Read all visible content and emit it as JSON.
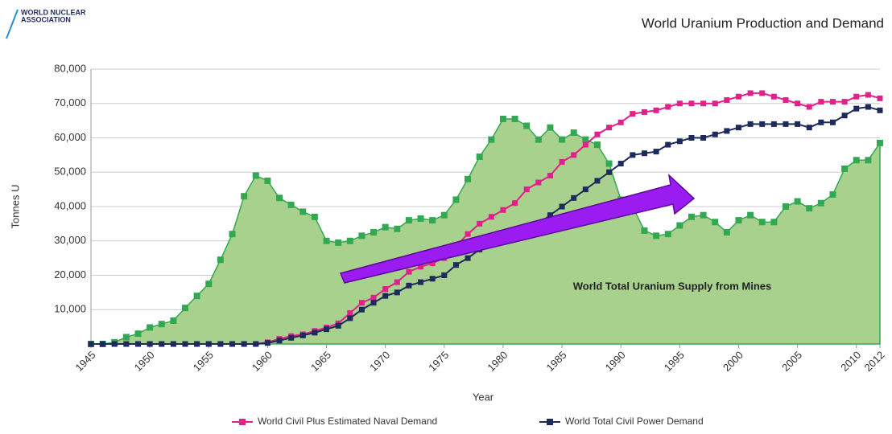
{
  "logo": {
    "line1": "WORLD NUCLEAR",
    "line2": "ASSOCIATION"
  },
  "chart_data": {
    "type": "line",
    "title": "World Uranium Production and Demand",
    "x_label": "Year",
    "y_label": "Tonnes U",
    "annotation": "World Total Uranium Supply from Mines",
    "x": [
      1945,
      1946,
      1947,
      1948,
      1949,
      1950,
      1951,
      1952,
      1953,
      1954,
      1955,
      1956,
      1957,
      1958,
      1959,
      1960,
      1961,
      1962,
      1963,
      1964,
      1965,
      1966,
      1967,
      1968,
      1969,
      1970,
      1971,
      1972,
      1973,
      1974,
      1975,
      1976,
      1977,
      1978,
      1979,
      1980,
      1981,
      1982,
      1983,
      1984,
      1985,
      1986,
      1987,
      1988,
      1989,
      1990,
      1991,
      1992,
      1993,
      1994,
      1995,
      1996,
      1997,
      1998,
      1999,
      2000,
      2001,
      2002,
      2003,
      2004,
      2005,
      2006,
      2007,
      2008,
      2009,
      2010,
      2011,
      2012
    ],
    "supply": {
      "color": "#a9d18e",
      "line_color": "#33a852",
      "values": [
        0,
        0,
        500,
        2000,
        3000,
        4800,
        5800,
        6800,
        10500,
        14000,
        17500,
        24500,
        32000,
        43000,
        49000,
        47500,
        42500,
        40500,
        38500,
        37000,
        30000,
        29500,
        30000,
        31500,
        32500,
        34000,
        33500,
        36000,
        36500,
        36000,
        37500,
        42000,
        48000,
        54500,
        59500,
        65500,
        65500,
        63500,
        59500,
        63000,
        59500,
        61500,
        59500,
        58000,
        52500,
        42000,
        40000,
        33000,
        31500,
        32000,
        34500,
        37000,
        37500,
        35500,
        32500,
        36000,
        37500,
        35500,
        35500,
        40000,
        41500,
        39500,
        41000,
        43500,
        51000,
        53500,
        53500,
        58500
      ]
    },
    "series": [
      {
        "name": "World Civil Plus Estimated Naval Demand",
        "color": "#e0218a",
        "values": [
          0,
          0,
          0,
          0,
          0,
          0,
          0,
          0,
          0,
          0,
          0,
          0,
          0,
          0,
          0,
          500,
          1500,
          2300,
          2800,
          3800,
          4800,
          6000,
          9000,
          12000,
          13500,
          16000,
          18000,
          21000,
          22500,
          23500,
          25000,
          28500,
          32000,
          35000,
          37000,
          39000,
          41000,
          45000,
          47000,
          49000,
          53000,
          55000,
          58000,
          61000,
          63000,
          64500,
          67000,
          67500,
          68000,
          69000,
          70000,
          70000,
          70000,
          70000,
          71000,
          72000,
          73000,
          73000,
          72000,
          71000,
          70000,
          69000,
          70500,
          70500,
          70500,
          72000,
          72500,
          71500
        ]
      },
      {
        "name": "World Total Civil Power Demand",
        "color": "#1f2a5c",
        "values": [
          0,
          0,
          0,
          0,
          0,
          0,
          0,
          0,
          0,
          0,
          0,
          0,
          0,
          0,
          0,
          300,
          1000,
          1800,
          2500,
          3300,
          4300,
          5300,
          7500,
          10000,
          12000,
          14000,
          15000,
          17000,
          18000,
          19000,
          20000,
          23000,
          25000,
          27500,
          29000,
          30000,
          31000,
          32500,
          35000,
          37500,
          40000,
          42500,
          45000,
          47500,
          50000,
          52500,
          55000,
          55500,
          56000,
          58000,
          59000,
          60000,
          60000,
          61000,
          62000,
          63000,
          64000,
          64000,
          64000,
          64000,
          64000,
          63000,
          64500,
          64500,
          66500,
          68500,
          69000,
          68000
        ]
      }
    ],
    "xlim": [
      1945,
      2012
    ],
    "xticks": [
      1945,
      1950,
      1955,
      1960,
      1965,
      1970,
      1975,
      1980,
      1985,
      1990,
      1995,
      2000,
      2005,
      2010,
      2012
    ],
    "ylim": [
      0,
      80000
    ],
    "yticks": [
      {
        "value": 10000,
        "label": "10,000"
      },
      {
        "value": 20000,
        "label": "20,000"
      },
      {
        "value": 30000,
        "label": "30,000"
      },
      {
        "value": 40000,
        "label": "40,000"
      },
      {
        "value": 50000,
        "label": "50,000"
      },
      {
        "value": 60000,
        "label": "60,000"
      },
      {
        "value": 70000,
        "label": "70,000"
      },
      {
        "value": 80000,
        "label": "80,000"
      }
    ],
    "grid": true,
    "legend": "bottom"
  }
}
